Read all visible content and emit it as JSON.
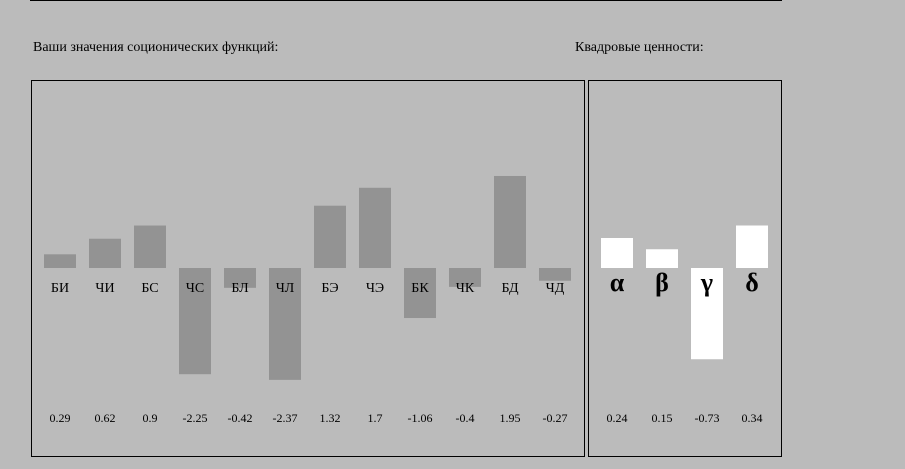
{
  "chart_data": [
    {
      "type": "bar",
      "title": "Ваши значения соционических функций:",
      "categories": [
        "БИ",
        "ЧИ",
        "БС",
        "ЧС",
        "БЛ",
        "ЧЛ",
        "БЭ",
        "ЧЭ",
        "БК",
        "ЧК",
        "БД",
        "ЧД"
      ],
      "values": [
        0.29,
        0.62,
        0.9,
        -2.25,
        -0.42,
        -2.37,
        1.32,
        1.7,
        -1.06,
        -0.4,
        1.95,
        -0.27
      ],
      "color": "#939393"
    },
    {
      "type": "bar",
      "title": "Квадровые ценности:",
      "categories": [
        "α",
        "β",
        "γ",
        "δ"
      ],
      "values": [
        0.24,
        0.15,
        -0.73,
        0.34
      ],
      "color": "#ffffff"
    }
  ]
}
